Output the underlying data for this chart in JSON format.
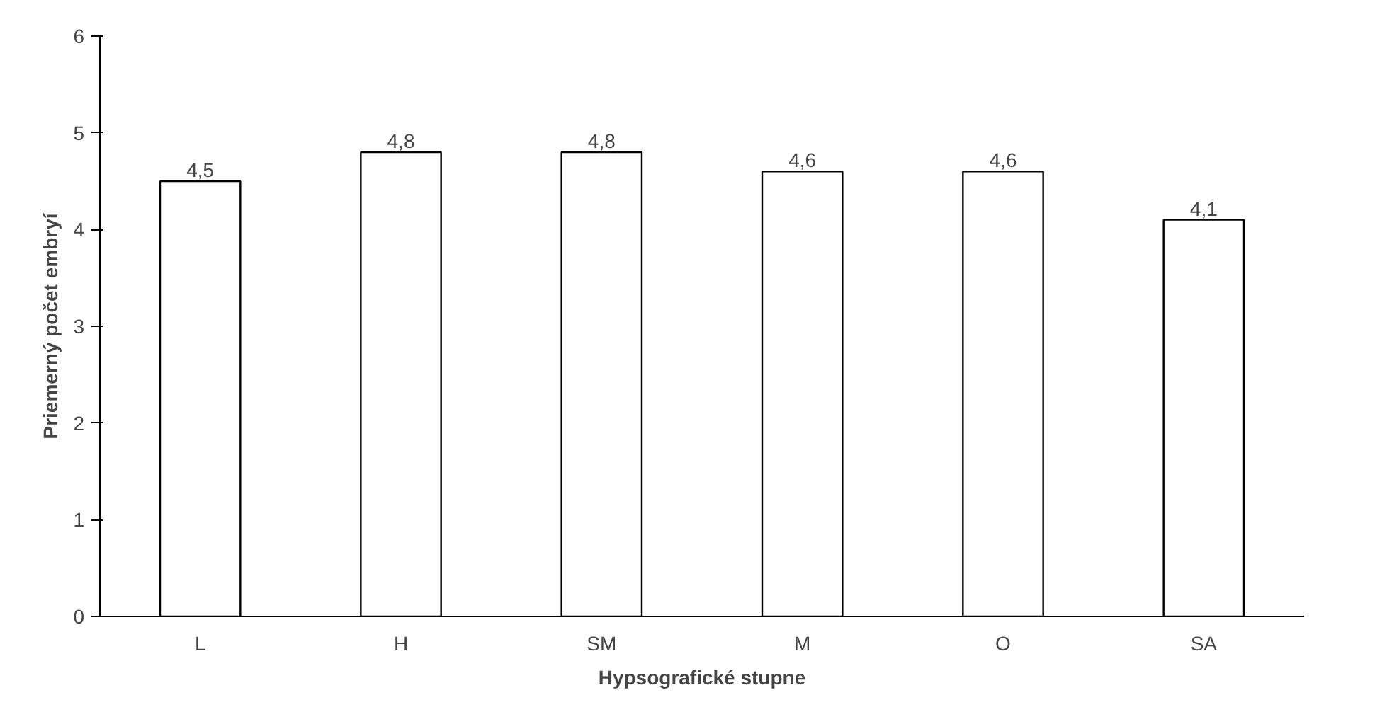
{
  "chart_data": {
    "type": "bar",
    "xlabel": "Hypsografické stupne",
    "ylabel": "Priemerný počet embryí",
    "categories": [
      "L",
      "H",
      "SM",
      "M",
      "O",
      "SA"
    ],
    "values": [
      4.5,
      4.8,
      4.8,
      4.6,
      4.6,
      4.1
    ],
    "value_labels": [
      "4,5",
      "4,8",
      "4,8",
      "4,6",
      "4,6",
      "4,1"
    ],
    "color": "#ffffff",
    "ylim": [
      0,
      6
    ],
    "yticks": [
      0,
      1,
      2,
      3,
      4,
      5,
      6
    ],
    "grid": false
  }
}
